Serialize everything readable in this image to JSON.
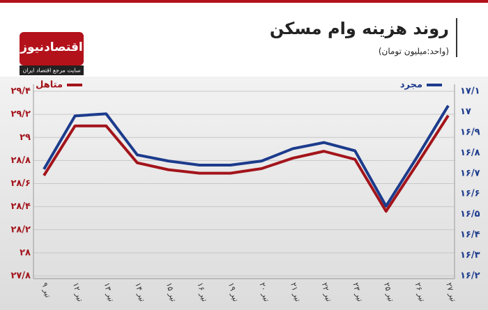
{
  "chart_data": {
    "type": "line",
    "title": "روند هزینه وام مسکن",
    "subtitle": "(واحد:میلیون تومان)",
    "logo": {
      "name": "اقتصادنیوز",
      "tagline": "سایت مرجع اقتصاد ایران"
    },
    "categories": [
      "۹ تیر",
      "۱۲ تیر",
      "۱۳ تیر",
      "۱۴ تیر",
      "۱۵ تیر",
      "۱۶ تیر",
      "۱۹ تیر",
      "۲۰ تیر",
      "۲۱ تیر",
      "۲۲ تیر",
      "۲۳ تیر",
      "۲۵ تیر",
      "۲۶ تیر",
      "۲۷ تیر"
    ],
    "series": [
      {
        "name": "متاهل",
        "color": "#a3141b",
        "values": [
          28.67,
          29.1,
          29.1,
          28.78,
          28.72,
          28.69,
          28.69,
          28.73,
          28.82,
          28.88,
          28.81,
          28.36,
          28.77,
          29.19
        ]
      },
      {
        "name": "مجرد",
        "color": "#1c3b8c",
        "axis": "y2",
        "values": [
          16.72,
          16.98,
          16.99,
          16.79,
          16.76,
          16.74,
          16.74,
          16.76,
          16.82,
          16.85,
          16.81,
          16.54,
          16.78,
          17.03
        ]
      }
    ],
    "ylim": [
      27.8,
      29.4
    ],
    "yticks": [
      {
        "value": 27.8,
        "label": "۲۷/۸"
      },
      {
        "value": 28,
        "label": "۲۸"
      },
      {
        "value": 28.2,
        "label": "۲۸/۲"
      },
      {
        "value": 28.4,
        "label": "۲۸/۴"
      },
      {
        "value": 28.6,
        "label": "۲۸/۶"
      },
      {
        "value": 28.8,
        "label": "۲۸/۸"
      },
      {
        "value": 29,
        "label": "۲۹"
      },
      {
        "value": 29.2,
        "label": "۲۹/۲"
      },
      {
        "value": 29.4,
        "label": "۲۹/۴"
      }
    ],
    "y2lim": [
      16.2,
      17.1
    ],
    "y2ticks": [
      {
        "value": 16.2,
        "label": "۱۶/۲"
      },
      {
        "value": 16.3,
        "label": "۱۶/۳"
      },
      {
        "value": 16.4,
        "label": "۱۶/۴"
      },
      {
        "value": 16.5,
        "label": "۱۶/۵"
      },
      {
        "value": 16.6,
        "label": "۱۶/۶"
      },
      {
        "value": 16.7,
        "label": "۱۶/۷"
      },
      {
        "value": 16.8,
        "label": "۱۶/۸"
      },
      {
        "value": 16.9,
        "label": "۱۶/۹"
      },
      {
        "value": 17,
        "label": "۱۷"
      },
      {
        "value": 17.1,
        "label": "۱۷/۱"
      }
    ],
    "grid": true
  }
}
